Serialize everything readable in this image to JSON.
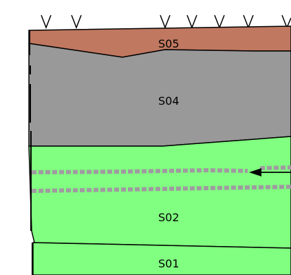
{
  "diagram": {
    "layers": [
      {
        "id": "S05",
        "label": "S05",
        "color": "#c07860"
      },
      {
        "id": "S04",
        "label": "S04",
        "color": "#999999"
      },
      {
        "id": "S02",
        "label": "S02",
        "color": "#80ff80"
      },
      {
        "id": "S01",
        "label": "S01",
        "color": "#80ff80"
      }
    ],
    "dashed_band_color": "#a09aa0",
    "surface_marker_count": 7,
    "surface_marker_symbol": "V",
    "arrow_direction": "left"
  }
}
